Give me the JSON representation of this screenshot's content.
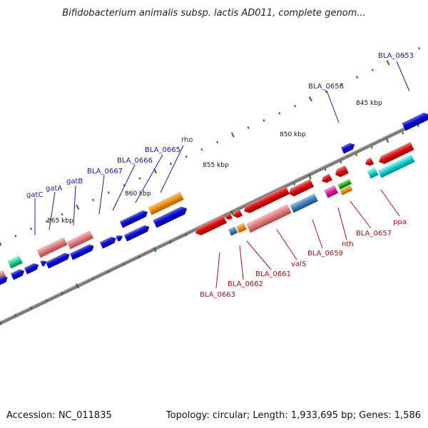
{
  "title": "Bifidobacterium animalis subsp. lactis AD011, complete genom...",
  "footer": {
    "accession": "Accession: NC_011835",
    "summary": "Topology: circular; Length: 1,933,695 bp; Genes: 1,586"
  },
  "ticks": [
    "845 kbp",
    "850 kbp",
    "855 kbp",
    "860 kbp",
    "865 kbp"
  ],
  "labels_forward": [
    "BLA_0653",
    "BLA_0656",
    "rho",
    "BLA_0665",
    "BLA_0666",
    "BLA_0667",
    "gatB",
    "gatA",
    "gatC"
  ],
  "labels_reverse": [
    "ppa",
    "BLA_0657",
    "nth",
    "BLA_0659",
    "valS",
    "BLA_0661",
    "BLA_0662",
    "BLA_0663"
  ],
  "colors": {
    "forward_cds": "#0a0ad8",
    "reverse_cds": "#e01010",
    "rrna_pink": "#e07a7a",
    "orange": "#f08c10",
    "steel": "#3e7fb8",
    "cyan": "#10d0d0",
    "teal_green": "#20d08a",
    "magenta": "#e020a0",
    "green": "#20b020",
    "backbone": "#7a7a7a",
    "tick_green": "#1a7a1a",
    "label_blue": "#1a1aa6",
    "label_red": "#b01010"
  }
}
